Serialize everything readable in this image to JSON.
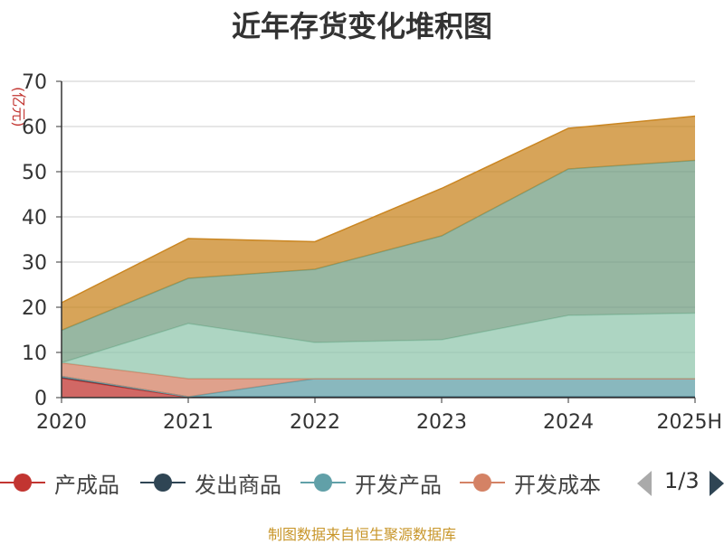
{
  "title": "近年存货变化堆积图",
  "unit": "(亿元)",
  "footer": "制图数据来自恒生聚源数据库",
  "legend": {
    "items": [
      {
        "label": "产成品",
        "color": "#c23531"
      },
      {
        "label": "发出商品",
        "color": "#2f4554"
      },
      {
        "label": "开发产品",
        "color": "#61a0a8"
      },
      {
        "label": "开发成本",
        "color": "#d48265"
      }
    ],
    "page": "1/3"
  },
  "chart_data": {
    "type": "area",
    "stacked": true,
    "categories": [
      "2020",
      "2021",
      "2022",
      "2023",
      "2024",
      "2025H"
    ],
    "ylim": [
      0,
      70
    ],
    "yticks": [
      0,
      10,
      20,
      30,
      40,
      50,
      60,
      70
    ],
    "grid": true,
    "series": [
      {
        "name": "产成品",
        "color": "#c23531",
        "values": [
          4.3,
          0.1,
          0.1,
          0.1,
          0.1,
          0.1
        ]
      },
      {
        "name": "发出商品",
        "color": "#2f4554",
        "values": [
          0.4,
          0.1,
          0.1,
          0.1,
          0.1,
          0.1
        ]
      },
      {
        "name": "开发产品",
        "color": "#61a0a8",
        "values": [
          0,
          0,
          4.0,
          4.0,
          4.0,
          4.0
        ]
      },
      {
        "name": "开发成本",
        "color": "#d48265",
        "values": [
          3.0,
          4.0,
          0,
          0,
          0,
          0
        ]
      },
      {
        "color": "#91c7ae",
        "values": [
          0,
          12.2,
          8.0,
          8.6,
          14.0,
          14.5
        ]
      },
      {
        "color": "#749f83",
        "values": [
          7.2,
          10.0,
          16.2,
          23.0,
          32.4,
          33.8
        ]
      },
      {
        "color": "#ca8622",
        "values": [
          6.1,
          8.8,
          6.1,
          10.5,
          9.0,
          9.8
        ]
      }
    ]
  }
}
